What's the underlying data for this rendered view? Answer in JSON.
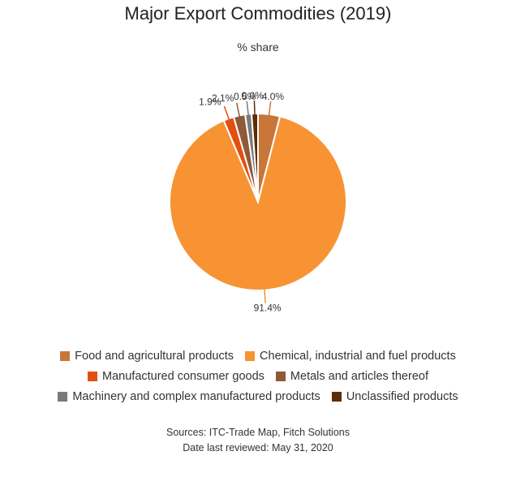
{
  "chart_data": {
    "type": "pie",
    "title": "Major Export Commodities (2019)",
    "subtitle": "% share",
    "slices": [
      {
        "name": "Food and agricultural products",
        "value": 4.0,
        "label": "4.0%",
        "color": "#c8763a"
      },
      {
        "name": "Chemical, industrial and fuel products",
        "value": 91.4,
        "label": "91.4%",
        "color": "#f79333"
      },
      {
        "name": "Manufactured consumer goods",
        "value": 1.9,
        "label": "1.9%",
        "color": "#e2500f"
      },
      {
        "name": "Metals and articles thereof",
        "value": 2.1,
        "label": "2.1%",
        "color": "#8e5a37"
      },
      {
        "name": "Machinery and complex manufactured products",
        "value": 0.5,
        "label": "0.5%",
        "color": "#7a7a7a"
      },
      {
        "name": "Unclassified products",
        "value": 0.0,
        "label": "0.0%",
        "color": "#5c2d06"
      }
    ],
    "legend_position": "bottom"
  },
  "footer": {
    "sources": "Sources: ITC-Trade Map, Fitch Solutions",
    "reviewed": "Date last reviewed: May 31, 2020"
  }
}
